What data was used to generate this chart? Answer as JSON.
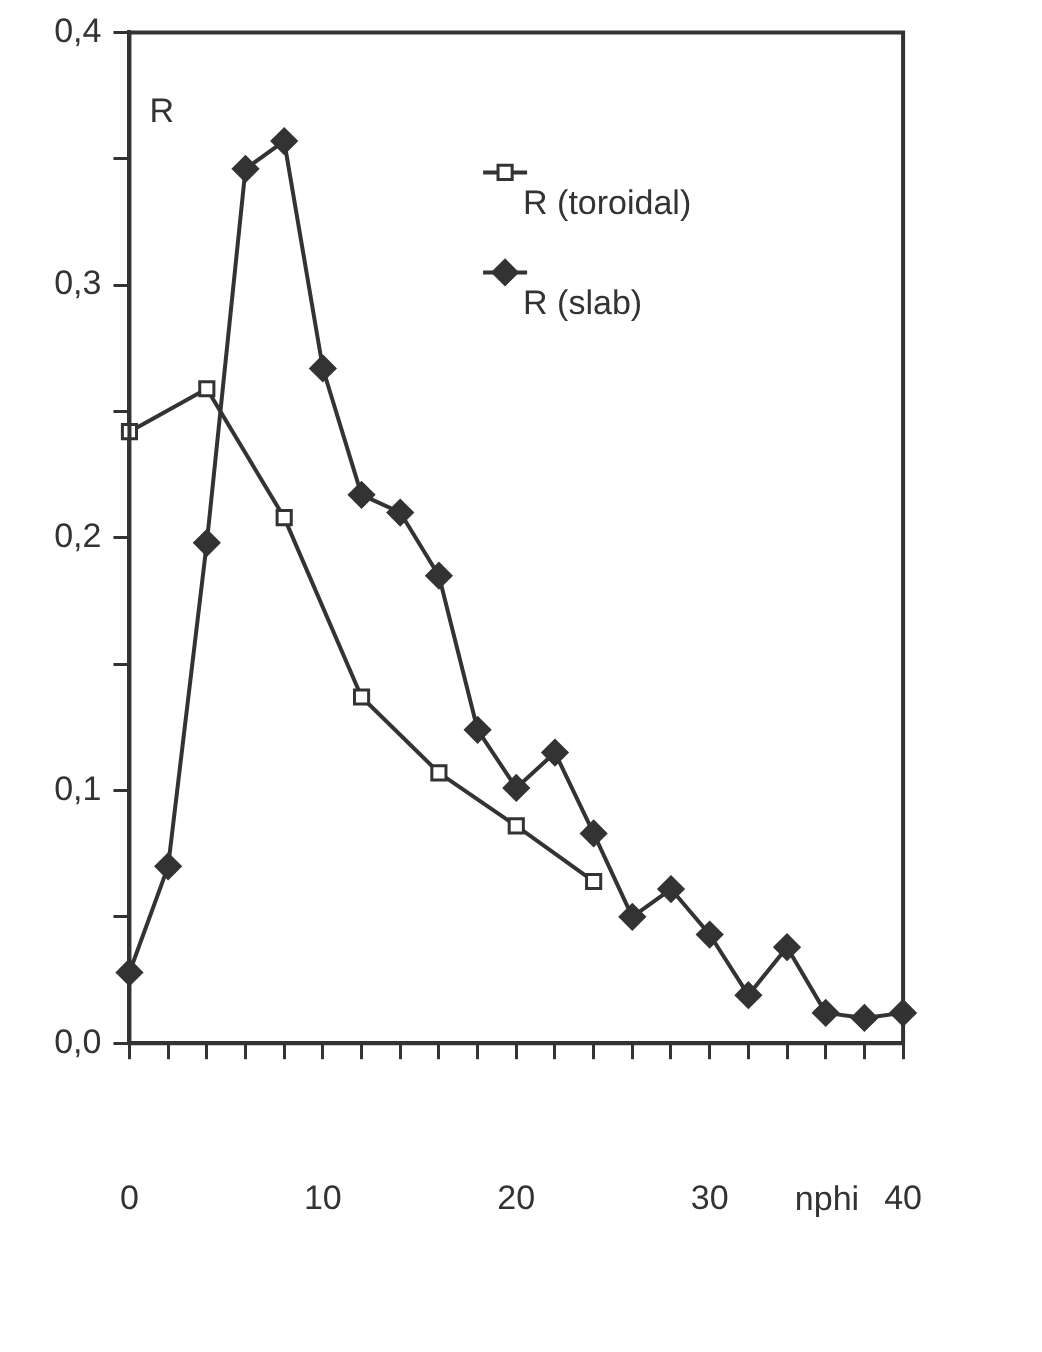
{
  "chart_data": {
    "type": "line",
    "xlabel": "nphi",
    "ylabel": "R",
    "xlim": [
      0,
      40
    ],
    "ylim": [
      0,
      0.4
    ],
    "xticks": [
      0,
      {
        "value": 2,
        "label": null
      },
      {
        "value": 4,
        "label": null
      },
      {
        "value": 6,
        "label": null
      },
      {
        "value": 8,
        "label": null
      },
      10,
      {
        "value": 12,
        "label": null
      },
      {
        "value": 14,
        "label": null
      },
      {
        "value": 16,
        "label": null
      },
      {
        "value": 18,
        "label": null
      },
      20,
      {
        "value": 22,
        "label": null
      },
      {
        "value": 24,
        "label": null
      },
      {
        "value": 26,
        "label": null
      },
      {
        "value": 28,
        "label": null
      },
      30,
      {
        "value": 32,
        "label": null
      },
      {
        "value": 34,
        "label": null
      },
      {
        "value": 36,
        "label": null
      },
      {
        "value": 38,
        "label": null
      },
      40
    ],
    "yticks": [
      {
        "value": 0,
        "label": "0,0"
      },
      {
        "value": 0.05,
        "label": null
      },
      {
        "value": 0.1,
        "label": "0,1"
      },
      {
        "value": 0.15,
        "label": null
      },
      {
        "value": 0.2,
        "label": "0,2"
      },
      {
        "value": 0.25,
        "label": null
      },
      {
        "value": 0.3,
        "label": "0,3"
      },
      {
        "value": 0.35,
        "label": null
      },
      {
        "value": 0.4,
        "label": "0,4"
      }
    ],
    "grid": false,
    "legend": "top right",
    "line_style": "solid",
    "series": [
      {
        "name": "R (toroidal)",
        "color": "#333333",
        "marker": "square",
        "x": [
          0,
          4,
          8,
          12,
          16,
          20,
          24
        ],
        "values": [
          0.242,
          0.259,
          0.208,
          0.137,
          0.107,
          0.086,
          0.064
        ]
      },
      {
        "name": "R (slab)",
        "color": "#333333",
        "marker": "diamond",
        "x": [
          0,
          2,
          4,
          6,
          8,
          10,
          12,
          14,
          16,
          18,
          20,
          22,
          24,
          26,
          28,
          30,
          32,
          34,
          36,
          38,
          40
        ],
        "values": [
          0.028,
          0.07,
          0.198,
          0.346,
          0.357,
          0.267,
          0.217,
          0.21,
          0.185,
          0.124,
          0.101,
          0.115,
          0.083,
          0.05,
          0.061,
          0.043,
          0.019,
          0.038,
          0.012,
          0.01,
          0.012
        ]
      }
    ]
  }
}
